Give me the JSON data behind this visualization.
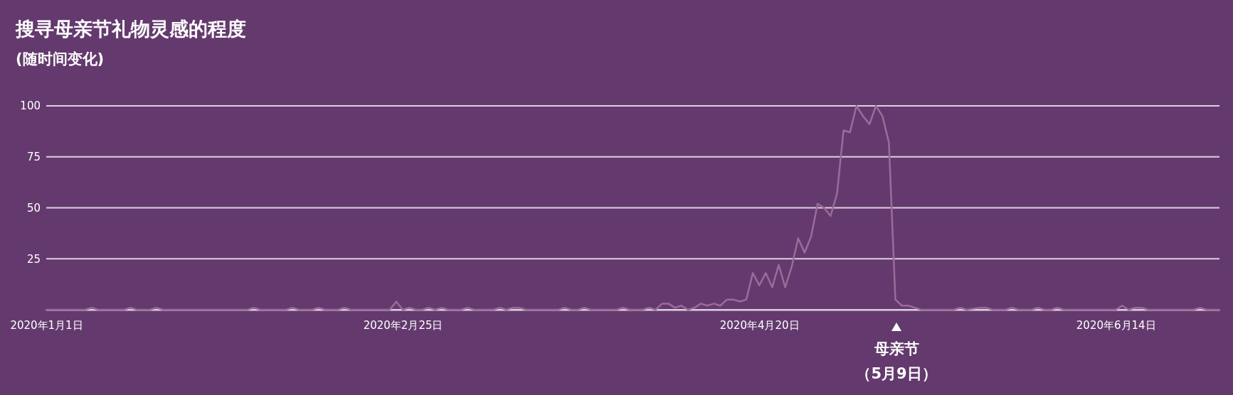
{
  "chart_data": {
    "type": "line",
    "title": "搜寻母亲节礼物灵感的程度",
    "subtitle": "(随时间变化)",
    "x": [
      "2020-01-01",
      "2020-01-07",
      "2020-01-08",
      "2020-01-09",
      "2020-01-13",
      "2020-01-14",
      "2020-01-15",
      "2020-01-17",
      "2020-01-18",
      "2020-01-19",
      "2020-02-01",
      "2020-02-02",
      "2020-02-03",
      "2020-02-07",
      "2020-02-08",
      "2020-02-09",
      "2020-02-11",
      "2020-02-12",
      "2020-02-13",
      "2020-02-15",
      "2020-02-16",
      "2020-02-17",
      "2020-02-23",
      "2020-02-24",
      "2020-02-25",
      "2020-02-26",
      "2020-02-27",
      "2020-02-28",
      "2020-02-29",
      "2020-03-01",
      "2020-03-02",
      "2020-03-03",
      "2020-03-05",
      "2020-03-06",
      "2020-03-07",
      "2020-03-10",
      "2020-03-11",
      "2020-03-12",
      "2020-03-13",
      "2020-03-14",
      "2020-03-15",
      "2020-03-20",
      "2020-03-21",
      "2020-03-22",
      "2020-03-23",
      "2020-03-24",
      "2020-03-25",
      "2020-03-29",
      "2020-03-30",
      "2020-03-31",
      "2020-04-02",
      "2020-04-03",
      "2020-04-04",
      "2020-04-05",
      "2020-04-06",
      "2020-04-07",
      "2020-04-08",
      "2020-04-09",
      "2020-04-10",
      "2020-04-11",
      "2020-04-12",
      "2020-04-13",
      "2020-04-14",
      "2020-04-15",
      "2020-04-16",
      "2020-04-17",
      "2020-04-18",
      "2020-04-19",
      "2020-04-20",
      "2020-04-21",
      "2020-04-22",
      "2020-04-23",
      "2020-04-24",
      "2020-04-25",
      "2020-04-26",
      "2020-04-27",
      "2020-04-28",
      "2020-04-29",
      "2020-04-30",
      "2020-05-01",
      "2020-05-02",
      "2020-05-03",
      "2020-05-04",
      "2020-05-05",
      "2020-05-06",
      "2020-05-07",
      "2020-05-08",
      "2020-05-09",
      "2020-05-10",
      "2020-05-11",
      "2020-05-12",
      "2020-05-13",
      "2020-05-14",
      "2020-05-15",
      "2020-05-20",
      "2020-05-21",
      "2020-05-22",
      "2020-05-24",
      "2020-05-25",
      "2020-05-26",
      "2020-05-28",
      "2020-05-29",
      "2020-05-30",
      "2020-06-01",
      "2020-06-02",
      "2020-06-03",
      "2020-06-04",
      "2020-06-05",
      "2020-06-06",
      "2020-06-14",
      "2020-06-15",
      "2020-06-16",
      "2020-06-17",
      "2020-06-18",
      "2020-06-19",
      "2020-06-26",
      "2020-06-27",
      "2020-06-28",
      "2020-06-30"
    ],
    "series": [
      {
        "color": "#9c6b98",
        "values": [
          0,
          0,
          1,
          0,
          0,
          1,
          0,
          0,
          1,
          0,
          0,
          1,
          0,
          0,
          1,
          0,
          0,
          1,
          0,
          0,
          1,
          0,
          0,
          4,
          0,
          1,
          0,
          0,
          1,
          0,
          1,
          0,
          0,
          1,
          0,
          0,
          1,
          0,
          1,
          1,
          0,
          0,
          1,
          0,
          0,
          1,
          0,
          0,
          1,
          0,
          0,
          1,
          0,
          3,
          3,
          1,
          2,
          0,
          1,
          3,
          2,
          3,
          2,
          5,
          5,
          4,
          5,
          18,
          12,
          18,
          11,
          22,
          11,
          21,
          35,
          28,
          36,
          52,
          50,
          46,
          57,
          88,
          87,
          100,
          95,
          91,
          100,
          95,
          82,
          5,
          2,
          2,
          1,
          0,
          0,
          1,
          0,
          1,
          1,
          0,
          0,
          1,
          0,
          0,
          1,
          0,
          0,
          1,
          0,
          0,
          2,
          0,
          1,
          1,
          0,
          0,
          1,
          0,
          0
        ]
      }
    ],
    "xlim": [
      "2020-01-01",
      "2020-06-30"
    ],
    "xticks": [
      {
        "value": "2020-01-01",
        "label": "2020年1月1日"
      },
      {
        "value": "2020-02-25",
        "label": "2020年2月25日"
      },
      {
        "value": "2020-04-20",
        "label": "2020年4月20日"
      },
      {
        "value": "2020-06-14",
        "label": "2020年6月14日"
      }
    ],
    "ylim": [
      0,
      100
    ],
    "yticks": [
      {
        "value": 0,
        "label": null
      },
      25,
      50,
      75,
      100
    ],
    "grid": "y",
    "marker": "none",
    "line_style": "solid",
    "annotations": [
      "母亲节",
      "（5月9日）"
    ]
  }
}
